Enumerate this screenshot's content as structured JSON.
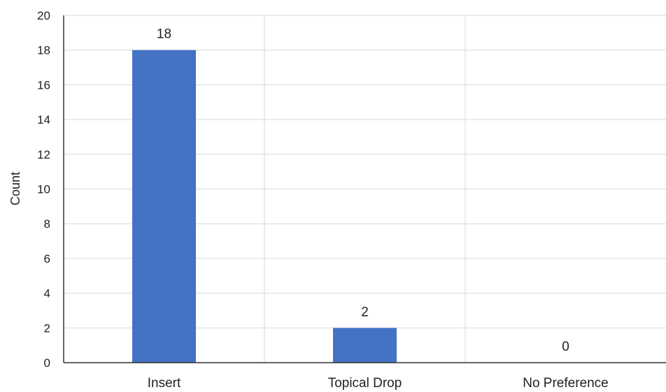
{
  "chart_data": {
    "type": "bar",
    "categories": [
      "Insert",
      "Topical Drop",
      "No Preference"
    ],
    "values": [
      18,
      2,
      0
    ],
    "data_labels": [
      "18",
      "2",
      "0"
    ],
    "xlabel": "",
    "ylabel": "Count",
    "ylim": [
      0,
      20
    ],
    "yticks": [
      0,
      2,
      4,
      6,
      8,
      10,
      12,
      14,
      16,
      18,
      20
    ],
    "grid": true,
    "legend": "none",
    "bar_color": "#4472C4",
    "grid_color": "#d9d9d9",
    "axis_color": "#333333"
  }
}
